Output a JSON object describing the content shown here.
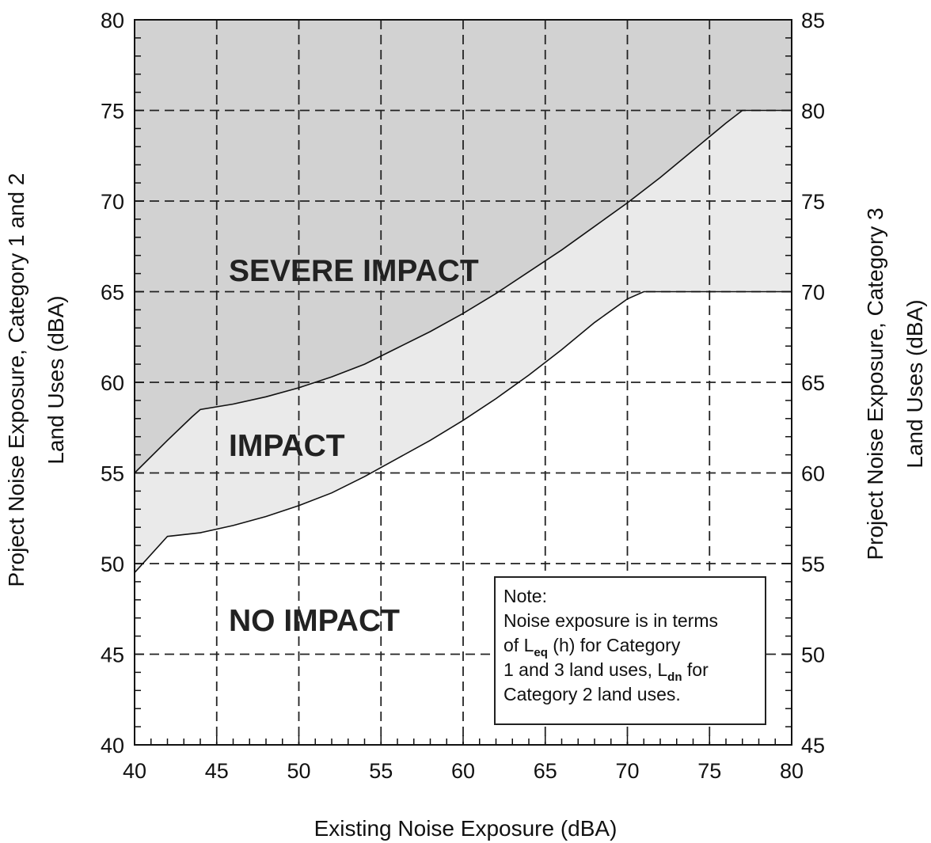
{
  "chart_data": {
    "type": "line",
    "xlabel": "Existing Noise Exposure (dBA)",
    "ylabel_left": [
      "Project Noise Exposure, Category 1 and 2",
      "Land Uses (dBA)"
    ],
    "ylabel_right": [
      "Project Noise Exposure, Category 3",
      "Land Uses (dBA)"
    ],
    "xlim": [
      40,
      80
    ],
    "ylim_left": [
      40,
      80
    ],
    "ylim_right": [
      45,
      85
    ],
    "x_ticks": [
      40,
      45,
      50,
      55,
      60,
      65,
      70,
      75,
      80
    ],
    "y_ticks_left": [
      40,
      45,
      50,
      55,
      60,
      65,
      70,
      75,
      80
    ],
    "y_ticks_right": [
      45,
      50,
      55,
      60,
      65,
      70,
      75,
      80,
      85
    ],
    "grid": true,
    "series": [
      {
        "x": [
          40,
          42,
          44,
          46,
          48,
          50,
          52,
          54,
          56,
          58,
          60,
          62,
          64,
          66,
          68,
          70,
          71,
          72,
          80
        ],
        "y": [
          49.5,
          51.5,
          51.7,
          52.1,
          52.6,
          53.2,
          53.9,
          54.8,
          55.8,
          56.8,
          57.9,
          59.1,
          60.4,
          61.8,
          63.3,
          64.6,
          65,
          65,
          65
        ]
      },
      {
        "x": [
          40,
          42,
          43.5,
          44,
          46,
          48,
          50,
          52,
          54,
          56,
          58,
          60,
          62,
          64,
          66,
          68,
          70,
          72,
          74,
          76,
          77,
          78,
          80
        ],
        "y": [
          55,
          56.8,
          58.1,
          58.5,
          58.8,
          59.2,
          59.7,
          60.3,
          61,
          61.9,
          62.8,
          63.8,
          64.9,
          66.1,
          67.3,
          68.6,
          69.9,
          71.3,
          72.8,
          74.3,
          75,
          75,
          75
        ]
      }
    ],
    "annotations": {
      "severe": "SEVERE IMPACT",
      "impact": "IMPACT",
      "none": "NO IMPACT"
    },
    "colors": {
      "severe_fill": "#d2d2d2",
      "impact_fill": "#eaeaea",
      "no_impact_fill": "#ffffff",
      "grid": "#222222"
    }
  },
  "note": {
    "line1": "Note:",
    "line2": "Noise exposure is in terms",
    "line3_pre": "of L",
    "line3_sub": "eq",
    "line3_post": " (h) for Category",
    "line4_pre": "1 and 3 land uses, L",
    "line4_sub": "dn",
    "line4_post": "  for",
    "line5": "Category 2 land uses."
  }
}
